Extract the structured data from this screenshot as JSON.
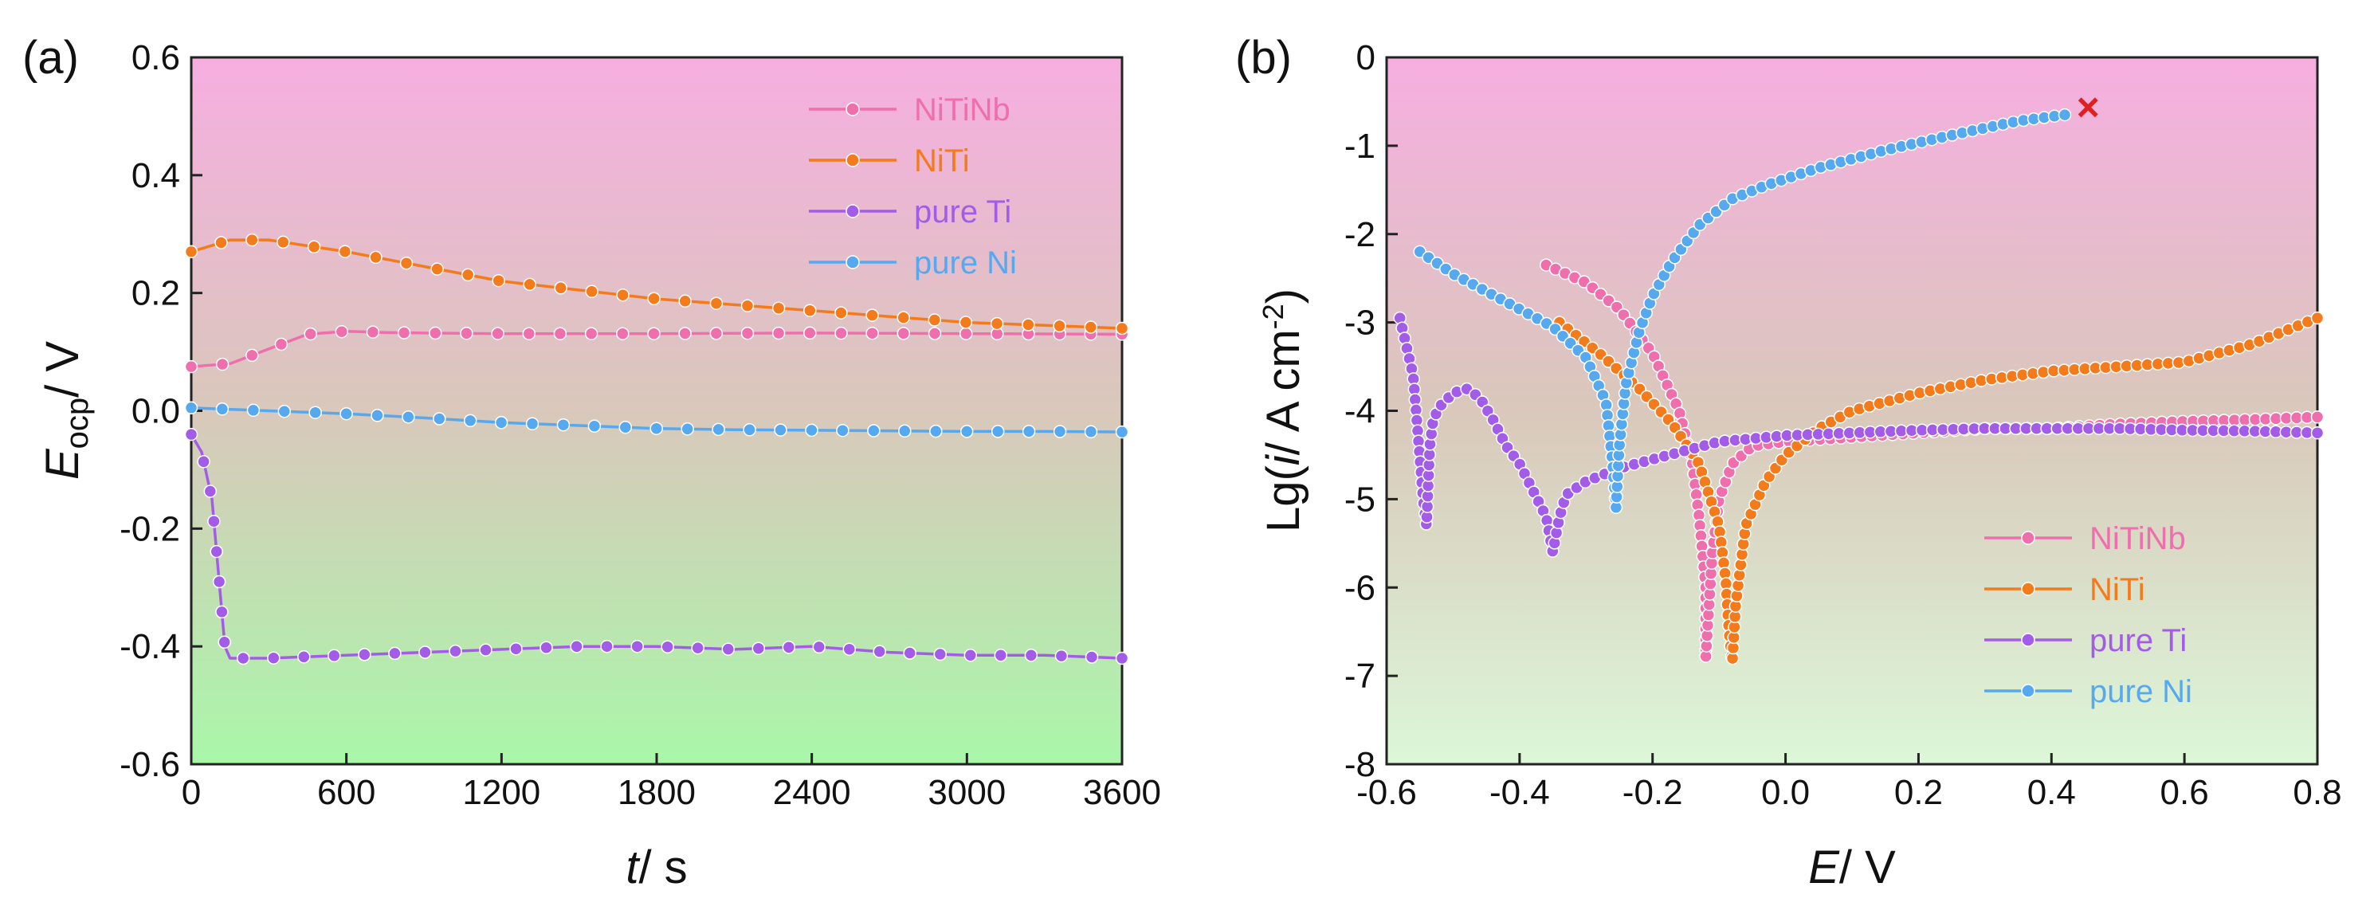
{
  "chart_data": [
    {
      "type": "line",
      "panel_label": "(a)",
      "xlabel": {
        "italic": "t",
        "rest": "/ s"
      },
      "ylabel": {
        "italic": "E",
        "sub": "ocp",
        "rest": "/ V"
      },
      "xlim": [
        0,
        3600
      ],
      "ylim": [
        -0.6,
        0.6
      ],
      "xticks": [
        0,
        600,
        1200,
        1800,
        2400,
        3000,
        3600
      ],
      "yticks": [
        -0.6,
        -0.4,
        -0.2,
        0.0,
        0.2,
        0.4,
        0.6
      ],
      "xtick_labels": [
        "0",
        "600",
        "1200",
        "1800",
        "2400",
        "3000",
        "3600"
      ],
      "ytick_labels": [
        "-0.6",
        "-0.4",
        "-0.2",
        "0.0",
        "0.2",
        "0.4",
        "0.6"
      ],
      "background_gradient": [
        "#f6aee0",
        "#d9c8bb",
        "#a9f7a9"
      ],
      "legend_position": "top-right",
      "series": [
        {
          "name": "NiTiNb",
          "color": "#ef6fad",
          "x": [
            0,
            150,
            300,
            450,
            600,
            750,
            900,
            1200,
            1800,
            2400,
            3000,
            3600
          ],
          "y": [
            0.075,
            0.08,
            0.105,
            0.13,
            0.135,
            0.133,
            0.132,
            0.131,
            0.131,
            0.132,
            0.131,
            0.13
          ]
        },
        {
          "name": "NiTi",
          "color": "#f47b1c",
          "x": [
            0,
            150,
            300,
            450,
            600,
            900,
            1200,
            1500,
            1800,
            2100,
            2400,
            2700,
            3000,
            3300,
            3600
          ],
          "y": [
            0.27,
            0.29,
            0.29,
            0.28,
            0.27,
            0.245,
            0.22,
            0.205,
            0.19,
            0.18,
            0.17,
            0.16,
            0.15,
            0.145,
            0.14
          ]
        },
        {
          "name": "pure Ti",
          "color": "#a35ce8",
          "x": [
            0,
            40,
            80,
            110,
            130,
            150,
            300,
            600,
            900,
            1200,
            1500,
            1800,
            2100,
            2400,
            2700,
            3000,
            3300,
            3600
          ],
          "y": [
            -0.04,
            -0.07,
            -0.15,
            -0.3,
            -0.4,
            -0.42,
            -0.42,
            -0.415,
            -0.41,
            -0.405,
            -0.4,
            -0.4,
            -0.405,
            -0.4,
            -0.41,
            -0.415,
            -0.415,
            -0.42
          ]
        },
        {
          "name": "pure Ni",
          "color": "#56a9ee",
          "x": [
            0,
            300,
            600,
            900,
            1200,
            1500,
            1800,
            2100,
            2400,
            2700,
            3000,
            3300,
            3600
          ],
          "y": [
            0.005,
            0.0,
            -0.005,
            -0.012,
            -0.02,
            -0.025,
            -0.03,
            -0.032,
            -0.033,
            -0.034,
            -0.035,
            -0.035,
            -0.036
          ]
        }
      ]
    },
    {
      "type": "line",
      "panel_label": "(b)",
      "xlabel": {
        "italic": "E",
        "rest": "/ V"
      },
      "ylabel": {
        "pre": "Lg(",
        "italic": "i",
        "rest": "/ A cm",
        "sup": "-2",
        "post": ")"
      },
      "xlim": [
        -0.6,
        0.8
      ],
      "ylim": [
        -8,
        0
      ],
      "xticks": [
        -0.6,
        -0.4,
        -0.2,
        0.0,
        0.2,
        0.4,
        0.6,
        0.8
      ],
      "yticks": [
        -8,
        -7,
        -6,
        -5,
        -4,
        -3,
        -2,
        -1,
        0
      ],
      "xtick_labels": [
        "-0.6",
        "-0.4",
        "-0.2",
        "0.0",
        "0.2",
        "0.4",
        "0.6",
        "0.8"
      ],
      "ytick_labels": [
        "-8",
        "-7",
        "-6",
        "-5",
        "-4",
        "-3",
        "-2",
        "-1",
        "0"
      ],
      "background_gradient": [
        "#f6aee0",
        "#d9c8bb",
        "#dcf7d8"
      ],
      "legend_position": "bottom-right",
      "annotations": [
        {
          "text": "×",
          "x": 0.455,
          "y": -0.6,
          "color": "#e0201e"
        }
      ],
      "series": [
        {
          "name": "NiTiNb",
          "color": "#ef6fad",
          "x": [
            -0.36,
            -0.3,
            -0.25,
            -0.2,
            -0.16,
            -0.14,
            -0.13,
            -0.12,
            -0.12,
            -0.11,
            -0.1,
            -0.08,
            -0.05,
            0.0,
            0.1,
            0.2,
            0.3,
            0.4,
            0.5,
            0.6,
            0.7,
            0.8
          ],
          "y": [
            -2.35,
            -2.55,
            -2.85,
            -3.35,
            -4.0,
            -4.6,
            -5.2,
            -6.0,
            -6.8,
            -5.6,
            -5.0,
            -4.6,
            -4.4,
            -4.35,
            -4.3,
            -4.25,
            -4.2,
            -4.2,
            -4.15,
            -4.12,
            -4.1,
            -4.07
          ]
        },
        {
          "name": "NiTi",
          "color": "#f47b1c",
          "x": [
            -0.34,
            -0.28,
            -0.22,
            -0.17,
            -0.13,
            -0.1,
            -0.09,
            -0.085,
            -0.08,
            -0.075,
            -0.06,
            -0.03,
            0.0,
            0.05,
            0.1,
            0.2,
            0.3,
            0.4,
            0.5,
            0.6,
            0.65,
            0.7,
            0.75,
            0.8
          ],
          "y": [
            -3.0,
            -3.35,
            -3.75,
            -4.15,
            -4.6,
            -5.3,
            -5.9,
            -6.5,
            -6.85,
            -6.2,
            -5.3,
            -4.8,
            -4.5,
            -4.2,
            -4.0,
            -3.8,
            -3.65,
            -3.55,
            -3.5,
            -3.45,
            -3.35,
            -3.25,
            -3.1,
            -2.95
          ]
        },
        {
          "name": "pure Ti",
          "color": "#a35ce8",
          "x": [
            -0.58,
            -0.56,
            -0.545,
            -0.54,
            -0.535,
            -0.53,
            -0.52,
            -0.5,
            -0.48,
            -0.46,
            -0.44,
            -0.42,
            -0.4,
            -0.38,
            -0.36,
            -0.35,
            -0.34,
            -0.33,
            -0.3,
            -0.25,
            -0.2,
            -0.1,
            0.0,
            0.1,
            0.2,
            0.3,
            0.4,
            0.5,
            0.6,
            0.7,
            0.8
          ],
          "y": [
            -2.95,
            -3.6,
            -5.0,
            -5.3,
            -4.4,
            -4.1,
            -3.95,
            -3.8,
            -3.75,
            -3.85,
            -4.1,
            -4.4,
            -4.6,
            -4.9,
            -5.2,
            -5.6,
            -5.2,
            -4.95,
            -4.8,
            -4.65,
            -4.55,
            -4.35,
            -4.28,
            -4.25,
            -4.22,
            -4.2,
            -4.2,
            -4.2,
            -4.22,
            -4.23,
            -4.25
          ]
        },
        {
          "name": "pure Ni",
          "color": "#56a9ee",
          "x": [
            -0.55,
            -0.5,
            -0.45,
            -0.4,
            -0.35,
            -0.3,
            -0.27,
            -0.26,
            -0.255,
            -0.25,
            -0.24,
            -0.22,
            -0.2,
            -0.17,
            -0.13,
            -0.08,
            -0.03,
            0.05,
            0.15,
            0.25,
            0.35,
            0.42
          ],
          "y": [
            -2.2,
            -2.45,
            -2.65,
            -2.85,
            -3.05,
            -3.4,
            -3.9,
            -4.6,
            -5.1,
            -4.4,
            -3.7,
            -3.1,
            -2.7,
            -2.3,
            -1.9,
            -1.6,
            -1.45,
            -1.25,
            -1.05,
            -0.88,
            -0.72,
            -0.65
          ]
        }
      ]
    }
  ]
}
